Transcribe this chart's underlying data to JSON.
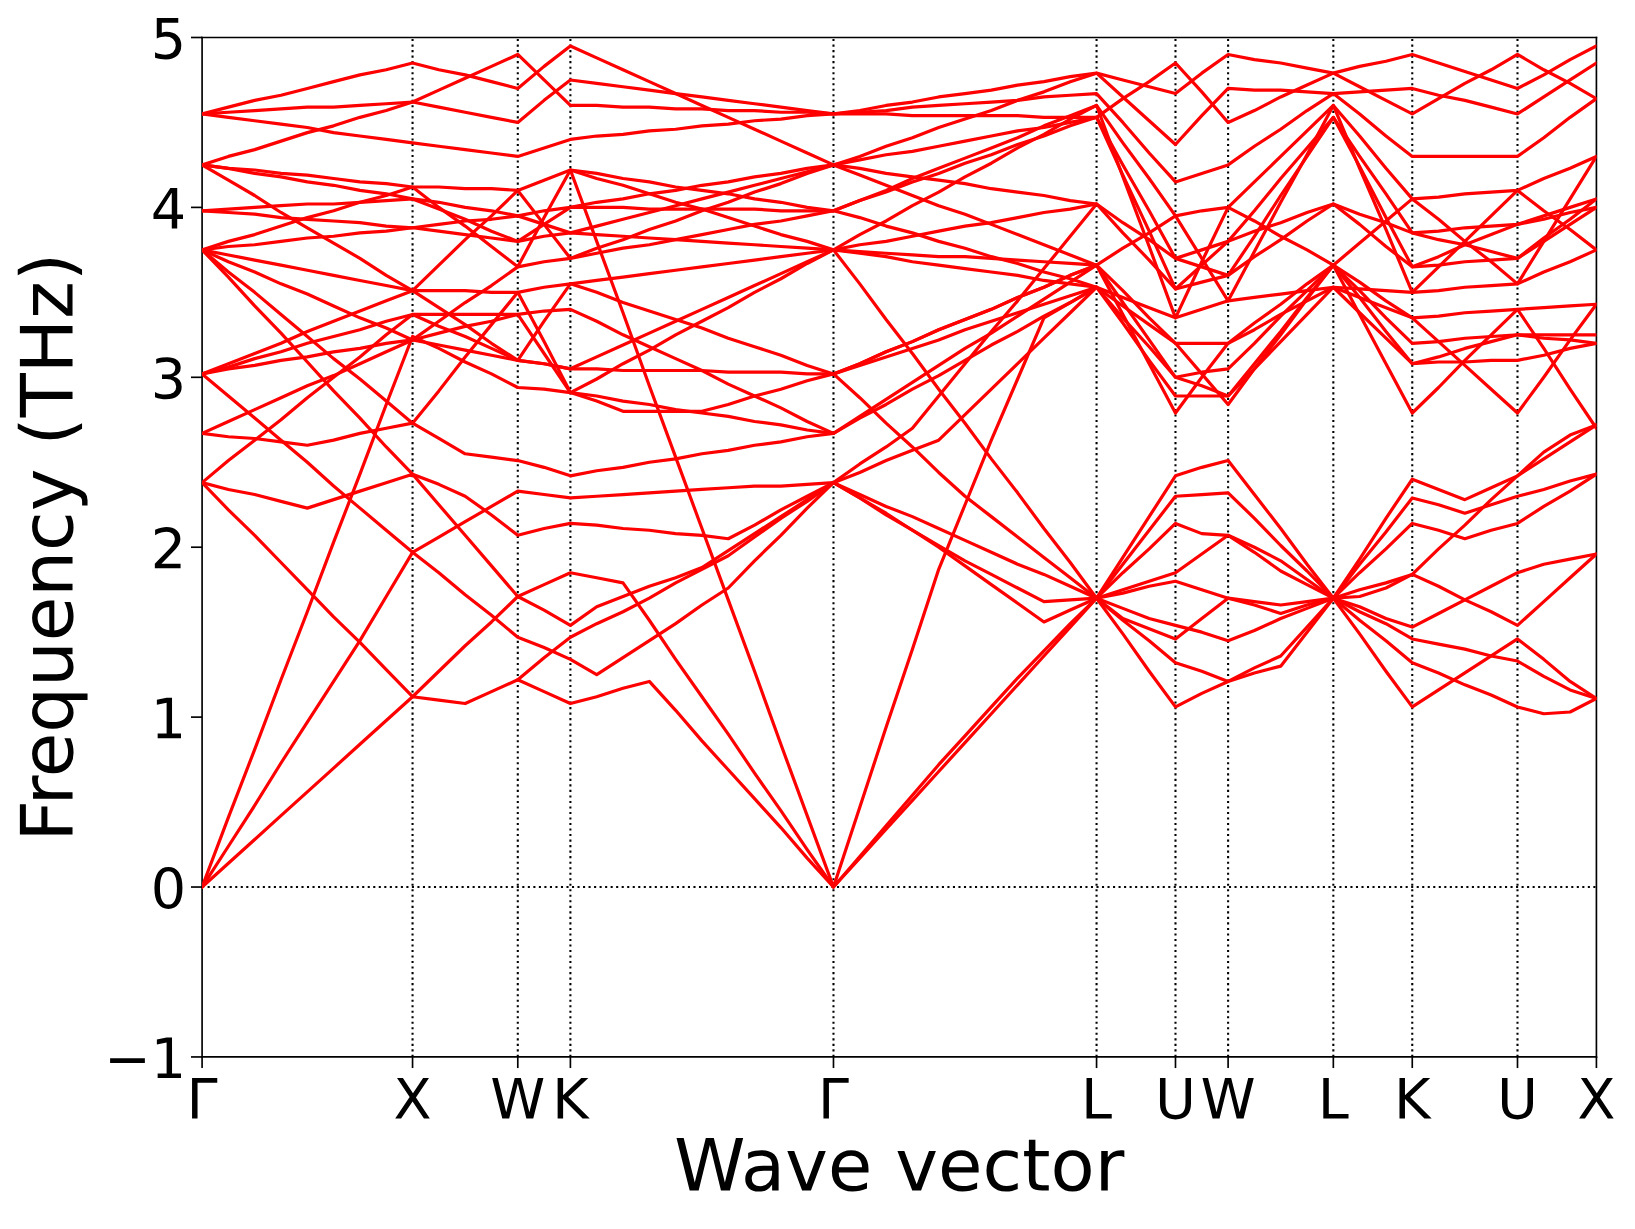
{
  "chart_data": {
    "type": "line",
    "xlabel": "Wave vector",
    "ylabel": "Frequency (THz)",
    "color": "#ff0000",
    "grid": "x",
    "categories": [
      "Γ",
      null,
      null,
      null,
      null,
      null,
      null,
      null,
      "X",
      null,
      null,
      null,
      "W",
      null,
      "K",
      null,
      null,
      null,
      null,
      null,
      null,
      null,
      null,
      null,
      "Γ",
      null,
      null,
      null,
      null,
      null,
      null,
      null,
      null,
      null,
      "L",
      null,
      null,
      "U",
      null,
      "W",
      null,
      null,
      null,
      "L",
      null,
      null,
      "K",
      null,
      null,
      null,
      "U",
      null,
      null,
      "X"
    ],
    "ylim": [
      -1,
      5
    ],
    "yticks": [
      {
        "value": -1,
        "label": "−1"
      },
      0,
      1,
      2,
      3,
      4,
      5
    ],
    "ref_lines": [
      {
        "axis": "y",
        "value": 0,
        "color": "#000000",
        "line_style": "dotted"
      }
    ],
    "series": [
      {
        "values": [
          0,
          0.14,
          0.28,
          0.42,
          0.56,
          0.7,
          0.84,
          0.98,
          1.12,
          1.1,
          1.08,
          1.15,
          1.22,
          1.15,
          1.08,
          1.12,
          1.17,
          1.21,
          1.04,
          0.86,
          0.69,
          0.52,
          0.35,
          0.17,
          0,
          0.17,
          0.34,
          0.51,
          0.68,
          0.85,
          1.02,
          1.19,
          1.36,
          1.53,
          1.7,
          1.49,
          1.27,
          1.06,
          1.14,
          1.21,
          1.29,
          1.36,
          1.53,
          1.7,
          1.49,
          1.27,
          1.06,
          1.16,
          1.26,
          1.36,
          1.46,
          1.34,
          1.21,
          1.11
        ]
      },
      {
        "values": [
          0,
          0.24,
          0.48,
          0.73,
          0.97,
          1.21,
          1.45,
          1.71,
          1.97,
          1.85,
          1.72,
          1.6,
          1.47,
          1.41,
          1.34,
          1.25,
          1.35,
          1.45,
          1.55,
          1.66,
          1.76,
          1.92,
          2.07,
          2.23,
          2.38,
          2.29,
          2.19,
          2.1,
          2.0,
          1.89,
          1.78,
          1.67,
          1.56,
          1.63,
          1.7,
          1.64,
          1.58,
          1.54,
          1.5,
          1.45,
          1.51,
          1.58,
          1.64,
          1.7,
          1.65,
          1.58,
          1.53,
          1.61,
          1.69,
          1.77,
          1.85,
          1.9,
          1.93,
          1.96
        ]
      },
      {
        "values": [
          0,
          0.41,
          0.81,
          1.22,
          1.62,
          2.03,
          2.43,
          2.84,
          3.24,
          3.17,
          3.09,
          3.02,
          2.94,
          2.93,
          2.91,
          2.86,
          2.8,
          2.8,
          2.8,
          2.8,
          2.84,
          2.89,
          2.93,
          2.98,
          3.02,
          3.08,
          3.15,
          3.21,
          3.28,
          3.34,
          3.4,
          3.47,
          3.53,
          3.6,
          3.66,
          null,
          null,
          null,
          null,
          null,
          null,
          null,
          null,
          null,
          null,
          null,
          null,
          null,
          null,
          null,
          null,
          null,
          null,
          null
        ]
      },
      {
        "values": [
          2.38,
          2.22,
          2.07,
          1.91,
          1.75,
          1.59,
          1.44,
          1.28,
          1.12,
          1.27,
          1.42,
          1.56,
          1.71,
          1.63,
          1.54,
          1.65,
          1.71,
          1.77,
          1.82,
          1.88,
          1.98,
          2.08,
          2.18,
          2.28,
          2.38,
          2.29,
          2.2,
          2.1,
          2.01,
          1.92,
          1.84,
          1.76,
          1.68,
          1.69,
          1.7,
          1.57,
          1.45,
          1.32,
          1.27,
          1.21,
          1.26,
          1.3,
          1.5,
          1.7,
          1.57,
          1.45,
          1.32,
          1.26,
          1.19,
          1.13,
          1.06,
          1.02,
          1.03,
          1.11
        ]
      },
      {
        "values": [
          null,
          null,
          null,
          null,
          null,
          null,
          null,
          null,
          null,
          null,
          null,
          null,
          null,
          null,
          4.22,
          3.8,
          3.38,
          2.95,
          2.53,
          2.11,
          1.69,
          1.27,
          0.84,
          0.42,
          0,
          0.47,
          0.94,
          1.4,
          1.87,
          2.25,
          2.63,
          2.99,
          3.35,
          3.44,
          3.53,
          null,
          null,
          null,
          null,
          null,
          null,
          null,
          null,
          null,
          null,
          null,
          null,
          null,
          null,
          null,
          null,
          null,
          null,
          null
        ]
      },
      {
        "values": [
          2.38,
          2.34,
          2.31,
          2.27,
          2.23,
          2.28,
          2.33,
          2.38,
          2.43,
          2.25,
          2.07,
          1.89,
          1.71,
          1.78,
          1.85,
          1.82,
          1.79,
          1.57,
          1.34,
          1.12,
          0.9,
          0.67,
          0.45,
          0.22,
          0,
          0.18,
          0.36,
          0.54,
          0.72,
          0.89,
          1.06,
          1.23,
          1.39,
          1.55,
          1.7,
          1.75,
          1.8,
          1.85,
          1.96,
          2.07,
          1.97,
          1.86,
          1.78,
          1.7,
          1.75,
          1.79,
          1.84,
          1.77,
          1.69,
          1.62,
          1.54,
          1.68,
          1.82,
          1.96
        ]
      },
      {
        "values": [
          2.38,
          2.51,
          2.63,
          2.75,
          2.88,
          3.0,
          3.12,
          3.25,
          3.37,
          3.3,
          3.24,
          3.17,
          3.1,
          3.08,
          3.05,
          3.12,
          3.19,
          3.26,
          3.33,
          3.4,
          3.47,
          3.54,
          3.61,
          3.68,
          3.75,
          3.55,
          3.34,
          3.14,
          2.93,
          2.73,
          2.52,
          2.32,
          2.11,
          1.91,
          1.7,
          1.94,
          2.18,
          2.42,
          2.47,
          2.51,
          2.31,
          2.11,
          1.9,
          1.7,
          1.93,
          2.17,
          2.4,
          2.34,
          2.28,
          2.35,
          2.42,
          2.52,
          2.62,
          2.72
        ]
      },
      {
        "values": [
          2.67,
          2.65,
          2.64,
          2.62,
          2.6,
          2.63,
          2.67,
          2.7,
          2.73,
          2.64,
          2.55,
          2.53,
          2.51,
          2.47,
          2.42,
          2.45,
          2.47,
          2.5,
          2.52,
          2.55,
          2.57,
          2.6,
          2.62,
          2.65,
          2.67,
          null,
          null,
          null,
          null,
          null,
          null,
          null,
          null,
          null,
          null,
          null,
          null,
          null,
          null,
          null,
          null,
          null,
          null,
          null,
          null,
          null,
          null,
          null,
          null,
          null,
          null,
          null,
          null,
          null
        ]
      },
      {
        "values": [
          3.02,
          2.89,
          2.76,
          2.63,
          2.5,
          2.36,
          2.23,
          2.1,
          1.97,
          2.06,
          2.15,
          2.24,
          2.33,
          2.31,
          2.29,
          2.3,
          2.31,
          2.32,
          2.33,
          2.34,
          2.35,
          2.36,
          2.36,
          2.37,
          2.38,
          2.44,
          2.51,
          2.57,
          2.63,
          2.78,
          2.93,
          3.08,
          3.23,
          3.38,
          3.53,
          null,
          null,
          null,
          null,
          null,
          null,
          null,
          null,
          null,
          null,
          null,
          null,
          null,
          null,
          null,
          null,
          null,
          null,
          null
        ]
      },
      {
        "values": [
          3.75,
          3.59,
          3.42,
          3.26,
          3.09,
          2.92,
          2.76,
          2.59,
          2.43,
          2.37,
          2.3,
          2.19,
          2.07,
          2.11,
          2.14,
          2.13,
          2.11,
          2.1,
          2.08,
          2.07,
          2.05,
          2.13,
          2.22,
          2.3,
          2.38,
          2.31,
          2.24,
          2.18,
          2.11,
          2.04,
          1.97,
          1.9,
          1.84,
          1.77,
          1.7,
          1.85,
          1.99,
          2.14,
          2.08,
          2.07,
          2.0,
          1.92,
          1.81,
          1.7,
          1.85,
          1.99,
          2.14,
          2.1,
          2.05,
          2.1,
          2.14,
          2.24,
          2.33,
          2.43
        ]
      },
      {
        "values": [
          null,
          null,
          null,
          null,
          null,
          null,
          null,
          null,
          null,
          null,
          null,
          null,
          1.22,
          1.35,
          1.47,
          1.55,
          1.62,
          1.7,
          1.79,
          1.87,
          1.95,
          2.06,
          2.17,
          2.27,
          2.38,
          2.49,
          2.59,
          2.7,
          2.89,
          3.08,
          3.27,
          3.45,
          3.64,
          3.83,
          4.02,
          null,
          null,
          null,
          null,
          null,
          null,
          null,
          null,
          null,
          null,
          null,
          null,
          null,
          null,
          null,
          null,
          null,
          null,
          null
        ]
      },
      {
        "values": [
          null,
          null,
          null,
          null,
          null,
          null,
          null,
          null,
          null,
          null,
          null,
          null,
          null,
          null,
          null,
          null,
          null,
          null,
          null,
          null,
          null,
          null,
          null,
          null,
          3.02,
          2.88,
          2.73,
          2.59,
          2.44,
          2.3,
          2.18,
          2.06,
          1.94,
          1.82,
          1.7,
          1.9,
          2.1,
          2.3,
          2.31,
          2.32,
          2.17,
          2.01,
          1.86,
          1.7,
          1.9,
          2.09,
          2.29,
          2.25,
          2.2,
          2.25,
          2.3,
          2.34,
          2.39,
          2.43
        ]
      },
      {
        "values": [
          null,
          null,
          null,
          null,
          null,
          null,
          null,
          null,
          null,
          null,
          null,
          null,
          null,
          null,
          null,
          null,
          null,
          null,
          null,
          null,
          null,
          null,
          null,
          null,
          null,
          null,
          null,
          null,
          null,
          null,
          null,
          null,
          null,
          null,
          1.7,
          1.73,
          1.77,
          1.8,
          1.75,
          1.7,
          1.66,
          1.61,
          1.66,
          1.7,
          1.62,
          1.55,
          1.46,
          1.43,
          1.4,
          1.36,
          1.33,
          1.24,
          1.16,
          1.11
        ]
      },
      {
        "values": [
          null,
          null,
          null,
          null,
          null,
          null,
          null,
          null,
          null,
          null,
          null,
          null,
          null,
          null,
          null,
          null,
          null,
          null,
          null,
          null,
          null,
          null,
          null,
          null,
          null,
          null,
          null,
          null,
          null,
          null,
          null,
          null,
          null,
          null,
          1.7,
          1.58,
          1.52,
          1.46,
          1.58,
          1.7,
          1.68,
          1.66,
          1.68,
          1.7,
          1.71,
          1.76,
          1.84,
          1.99,
          2.13,
          2.28,
          2.42,
          2.56,
          2.66,
          2.72
        ]
      },
      {
        "values": [
          3.02,
          3.05,
          3.07,
          3.1,
          3.12,
          3.15,
          3.17,
          3.2,
          3.22,
          3.19,
          3.16,
          3.13,
          3.1,
          3.08,
          3.05,
          3.05,
          3.04,
          3.04,
          3.04,
          3.04,
          3.03,
          3.03,
          3.03,
          3.02,
          3.02,
          3.07,
          3.12,
          3.17,
          3.22,
          3.28,
          3.33,
          3.38,
          3.43,
          3.48,
          3.53,
          3.32,
          3.1,
          2.89,
          2.89,
          2.89,
          3.05,
          3.21,
          3.37,
          3.53,
          3.38,
          3.23,
          3.08,
          3.09,
          3.09,
          3.1,
          3.1,
          3.13,
          3.17,
          3.2
        ]
      },
      {
        "values": [
          3.02,
          3.06,
          3.11,
          3.15,
          3.2,
          3.24,
          3.28,
          3.33,
          3.37,
          3.37,
          3.37,
          3.37,
          3.37,
          3.39,
          3.4,
          3.33,
          3.25,
          3.18,
          3.11,
          3.04,
          2.96,
          2.89,
          2.82,
          2.74,
          2.67,
          2.77,
          2.87,
          2.97,
          3.07,
          3.17,
          3.26,
          3.36,
          3.46,
          3.56,
          3.66,
          3.44,
          3.22,
          3.0,
          3.03,
          3.05,
          3.2,
          3.36,
          3.51,
          3.66,
          3.51,
          3.35,
          3.2,
          3.21,
          3.23,
          3.24,
          3.25,
          3.25,
          3.25,
          3.25
        ]
      },
      {
        "values": [
          3.75,
          3.72,
          3.69,
          3.66,
          3.63,
          3.6,
          3.57,
          3.54,
          3.51,
          3.51,
          3.51,
          3.5,
          3.5,
          3.53,
          3.55,
          3.57,
          3.59,
          3.61,
          3.63,
          3.65,
          3.67,
          3.69,
          3.71,
          3.73,
          3.75,
          3.74,
          3.73,
          3.72,
          3.71,
          3.71,
          3.7,
          3.69,
          3.68,
          3.67,
          3.66,
          3.51,
          3.35,
          3.2,
          3.2,
          3.2,
          3.32,
          3.43,
          3.55,
          3.66,
          3.56,
          3.45,
          3.35,
          3.36,
          3.38,
          3.39,
          3.4,
          3.41,
          3.42,
          3.43
        ]
      },
      {
        "values": [
          3.75,
          3.68,
          3.62,
          3.55,
          3.49,
          3.42,
          3.35,
          3.29,
          3.22,
          3.33,
          3.44,
          3.54,
          3.65,
          3.68,
          3.7,
          3.73,
          3.76,
          3.78,
          3.81,
          3.84,
          3.87,
          3.9,
          3.92,
          3.95,
          3.98,
          3.94,
          3.89,
          3.85,
          3.8,
          3.76,
          3.71,
          3.67,
          3.62,
          3.58,
          3.53,
          3.47,
          3.41,
          3.35,
          3.4,
          3.45,
          3.47,
          3.49,
          3.51,
          3.53,
          3.52,
          3.51,
          3.5,
          3.51,
          3.53,
          3.54,
          3.55,
          3.62,
          3.68,
          3.75
        ]
      },
      {
        "values": [
          3.98,
          3.97,
          3.96,
          3.94,
          3.93,
          3.92,
          3.91,
          3.89,
          3.88,
          3.86,
          3.84,
          3.82,
          3.8,
          3.83,
          3.85,
          3.84,
          3.83,
          3.82,
          3.81,
          3.8,
          3.79,
          3.78,
          3.77,
          3.76,
          3.75,
          3.78,
          3.8,
          3.83,
          3.86,
          3.89,
          3.91,
          3.94,
          3.97,
          3.99,
          4.02,
          3.85,
          3.69,
          3.52,
          3.56,
          3.6,
          3.71,
          3.81,
          3.92,
          4.02,
          3.9,
          3.77,
          3.65,
          3.66,
          3.68,
          3.69,
          3.7,
          3.8,
          3.9,
          4.0
        ]
      },
      {
        "values": [
          3.98,
          3.99,
          4.0,
          4.01,
          4.02,
          4.02,
          4.03,
          4.04,
          4.05,
          4.03,
          4.0,
          3.98,
          3.95,
          3.98,
          4.0,
          4.03,
          4.05,
          4.08,
          4.1,
          4.13,
          4.15,
          4.18,
          4.2,
          4.23,
          4.25,
          4.28,
          4.31,
          4.33,
          4.36,
          4.39,
          4.42,
          4.45,
          4.47,
          4.5,
          4.53,
          4.25,
          3.98,
          3.7,
          3.75,
          3.8,
          3.98,
          4.17,
          4.35,
          4.53,
          4.3,
          4.08,
          3.85,
          3.86,
          3.88,
          3.89,
          3.9,
          3.95,
          4.0,
          4.05
        ]
      },
      {
        "values": [
          4.25,
          4.23,
          4.22,
          4.2,
          4.19,
          4.17,
          4.15,
          4.14,
          4.12,
          4.12,
          4.11,
          4.11,
          4.1,
          4.16,
          4.22,
          4.2,
          4.17,
          4.15,
          4.12,
          4.1,
          4.08,
          4.05,
          4.03,
          4.0,
          3.98,
          4.04,
          4.1,
          4.17,
          4.23,
          4.29,
          4.35,
          4.41,
          4.48,
          4.54,
          4.6,
          4.38,
          4.17,
          3.95,
          3.98,
          4.0,
          4.15,
          4.3,
          4.45,
          4.6,
          4.42,
          4.23,
          4.05,
          4.06,
          4.08,
          4.09,
          4.1,
          4.17,
          4.23,
          4.3
        ]
      },
      {
        "values": [
          4.55,
          4.53,
          4.51,
          4.49,
          4.47,
          4.44,
          4.42,
          4.4,
          4.38,
          4.36,
          4.34,
          4.32,
          4.3,
          4.35,
          4.4,
          4.42,
          4.43,
          4.45,
          4.46,
          4.48,
          4.49,
          4.51,
          4.52,
          4.54,
          4.55,
          4.56,
          4.57,
          4.59,
          4.6,
          4.61,
          4.62,
          4.63,
          4.65,
          4.66,
          4.67,
          4.5,
          4.32,
          4.15,
          4.2,
          4.25,
          4.36,
          4.46,
          4.57,
          4.67,
          4.55,
          4.42,
          4.3,
          4.3,
          4.3,
          4.3,
          4.3,
          4.41,
          4.53,
          4.64
        ]
      },
      {
        "values": [
          3.02,
          3.08,
          3.14,
          3.2,
          3.27,
          3.33,
          3.39,
          3.45,
          3.51,
          3.41,
          3.31,
          3.2,
          3.1,
          3.33,
          3.55,
          3.5,
          3.44,
          3.39,
          3.34,
          3.29,
          3.23,
          3.18,
          3.13,
          3.07,
          3.02,
          3.08,
          3.15,
          3.21,
          3.28,
          3.34,
          3.4,
          3.47,
          3.53,
          3.6,
          3.66,
          3.37,
          3.08,
          2.79,
          3.0,
          3.2,
          3.28,
          3.37,
          3.45,
          3.53,
          3.47,
          3.41,
          3.35,
          3.21,
          3.07,
          2.93,
          2.79,
          3.0,
          3.22,
          3.43
        ]
      },
      {
        "values": [
          2.67,
          2.74,
          2.81,
          2.88,
          2.95,
          3.01,
          3.08,
          3.15,
          3.22,
          3.26,
          3.3,
          3.33,
          3.37,
          3.14,
          2.91,
          2.89,
          2.86,
          2.84,
          2.81,
          2.79,
          2.77,
          2.74,
          2.72,
          2.69,
          2.67,
          2.76,
          2.84,
          2.93,
          3.01,
          3.1,
          3.19,
          3.27,
          3.36,
          3.44,
          3.53,
          3.35,
          3.18,
          3.0,
          2.95,
          2.89,
          3.08,
          3.27,
          3.47,
          3.66,
          3.47,
          3.27,
          3.08,
          3.12,
          3.17,
          3.21,
          3.25,
          3.23,
          3.22,
          3.2
        ]
      },
      {
        "values": [
          3.75,
          3.62,
          3.5,
          3.37,
          3.24,
          3.11,
          2.99,
          2.86,
          2.73,
          2.92,
          3.12,
          3.31,
          3.5,
          3.21,
          2.91,
          2.99,
          3.08,
          3.16,
          3.25,
          3.33,
          3.41,
          3.5,
          3.58,
          3.67,
          3.75,
          3.73,
          3.71,
          3.68,
          3.66,
          3.64,
          3.62,
          3.6,
          3.57,
          3.55,
          3.53,
          3.42,
          3.31,
          3.2,
          3.02,
          2.84,
          3.05,
          3.25,
          3.46,
          3.66,
          3.37,
          3.08,
          2.79,
          2.94,
          3.1,
          3.25,
          3.4,
          3.17,
          2.93,
          2.7
        ]
      },
      {
        "values": [
          3.75,
          3.8,
          3.84,
          3.89,
          3.94,
          3.98,
          4.03,
          4.07,
          4.12,
          4.0,
          3.89,
          3.77,
          3.65,
          3.94,
          4.22,
          4.17,
          4.13,
          4.08,
          4.03,
          3.99,
          3.94,
          3.89,
          3.84,
          3.8,
          3.75,
          3.84,
          3.92,
          4.01,
          4.09,
          4.18,
          4.26,
          4.35,
          4.43,
          4.52,
          4.6,
          4.18,
          3.77,
          3.35,
          3.68,
          4.0,
          3.92,
          3.83,
          3.75,
          3.66,
          3.79,
          3.92,
          4.05,
          3.93,
          3.8,
          3.68,
          3.55,
          3.8,
          4.05,
          4.3
        ]
      },
      {
        "values": [
          4.25,
          4.23,
          4.2,
          4.18,
          4.15,
          4.13,
          4.1,
          4.08,
          4.05,
          3.99,
          3.93,
          3.86,
          3.8,
          3.9,
          4.0,
          4.0,
          4.0,
          3.99,
          3.99,
          3.99,
          3.99,
          3.99,
          3.98,
          3.98,
          3.98,
          4.04,
          4.09,
          4.15,
          4.2,
          4.26,
          4.31,
          4.37,
          4.42,
          4.48,
          4.53,
          4.19,
          3.86,
          3.52,
          3.66,
          3.8,
          3.86,
          3.91,
          3.97,
          4.02,
          3.96,
          3.91,
          3.85,
          3.81,
          3.78,
          3.74,
          3.7,
          3.82,
          3.93,
          4.05
        ]
      },
      {
        "values": [
          3.75,
          3.77,
          3.78,
          3.8,
          3.82,
          3.83,
          3.85,
          3.86,
          3.88,
          3.9,
          3.92,
          3.93,
          3.95,
          3.9,
          3.85,
          3.89,
          3.93,
          3.97,
          4.01,
          4.05,
          4.09,
          4.13,
          4.17,
          4.21,
          4.25,
          4.23,
          4.2,
          4.18,
          4.16,
          4.14,
          4.11,
          4.09,
          4.07,
          4.04,
          4.02,
          3.91,
          3.81,
          3.7,
          3.65,
          3.6,
          3.83,
          4.07,
          4.3,
          4.53,
          4.24,
          3.94,
          3.65,
          3.71,
          3.78,
          3.84,
          3.9,
          3.93,
          3.97,
          4.0
        ]
      },
      {
        "values": [
          4.25,
          4.16,
          4.07,
          3.97,
          3.88,
          3.79,
          3.7,
          3.6,
          3.51,
          3.66,
          3.81,
          3.95,
          4.1,
          3.9,
          3.7,
          3.76,
          3.81,
          3.87,
          3.92,
          3.98,
          4.03,
          4.09,
          4.14,
          4.2,
          4.25,
          4.19,
          4.13,
          4.07,
          4.01,
          3.96,
          3.9,
          3.84,
          3.78,
          3.72,
          3.66,
          3.76,
          3.85,
          3.95,
          3.7,
          3.45,
          3.74,
          4.03,
          4.31,
          4.6,
          4.23,
          3.87,
          3.5,
          3.65,
          3.8,
          3.95,
          4.1,
          3.98,
          3.87,
          3.75
        ]
      },
      {
        "values": [
          4.55,
          4.56,
          4.57,
          4.58,
          4.59,
          4.59,
          4.6,
          4.61,
          4.62,
          4.59,
          4.56,
          4.53,
          4.5,
          4.63,
          4.75,
          4.73,
          4.71,
          4.69,
          4.67,
          4.65,
          4.63,
          4.61,
          4.59,
          4.57,
          4.55,
          4.57,
          4.6,
          4.62,
          4.65,
          4.67,
          4.69,
          4.72,
          4.74,
          4.77,
          4.79,
          4.65,
          4.51,
          4.37,
          4.54,
          4.7,
          4.69,
          4.69,
          4.68,
          4.67,
          4.68,
          4.69,
          4.7,
          4.66,
          4.63,
          4.59,
          4.55,
          4.65,
          4.75,
          4.85
        ]
      },
      {
        "values": [
          4.55,
          4.59,
          4.63,
          4.66,
          4.7,
          4.74,
          4.78,
          4.81,
          4.85,
          4.81,
          4.78,
          4.74,
          4.7,
          4.83,
          4.95,
          4.88,
          4.81,
          4.74,
          4.67,
          4.6,
          4.53,
          4.46,
          4.39,
          4.32,
          4.25,
          4.3,
          4.36,
          4.41,
          4.47,
          4.52,
          4.57,
          4.63,
          4.68,
          4.74,
          4.79,
          4.75,
          4.71,
          4.67,
          4.79,
          4.9,
          4.87,
          4.85,
          4.82,
          4.79,
          4.83,
          4.86,
          4.9,
          4.85,
          4.8,
          4.75,
          4.7,
          4.78,
          4.87,
          4.95
        ]
      },
      {
        "values": [
          4.25,
          4.3,
          4.34,
          4.39,
          4.44,
          4.48,
          4.53,
          4.57,
          4.62,
          4.69,
          4.76,
          4.83,
          4.9,
          4.75,
          4.6,
          4.6,
          4.59,
          4.59,
          4.58,
          4.58,
          4.57,
          4.57,
          4.56,
          4.56,
          4.55,
          4.55,
          4.55,
          4.54,
          4.54,
          4.54,
          4.54,
          4.54,
          4.53,
          4.53,
          4.53,
          4.64,
          4.74,
          4.85,
          4.68,
          4.5,
          4.57,
          4.65,
          4.72,
          4.79,
          4.71,
          4.63,
          4.55,
          4.64,
          4.73,
          4.81,
          4.9,
          4.81,
          4.73,
          4.64
        ]
      }
    ]
  }
}
